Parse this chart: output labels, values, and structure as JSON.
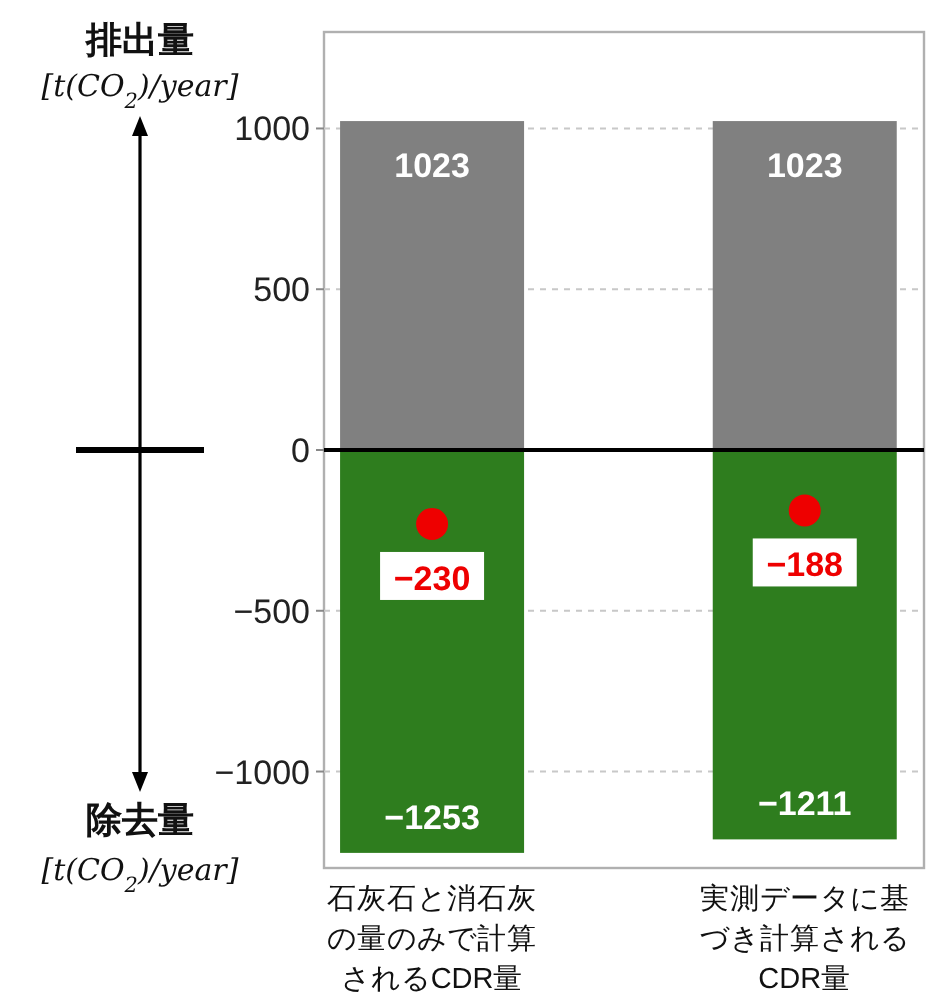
{
  "chart_data": {
    "type": "bar",
    "stacked": true,
    "categories": [
      "石灰石と消石灰の量のみで計算されるCDR量",
      "実測データに基づき計算されるCDR量"
    ],
    "series": [
      {
        "color": "#808080",
        "values": [
          1023,
          1023
        ]
      },
      {
        "color": "#2e7d1e",
        "values": [
          -1253,
          -1211
        ]
      },
      {
        "type": "scatter",
        "marker": "circle",
        "color": "#ee0000",
        "values": [
          -230,
          -188
        ]
      }
    ],
    "data_labels": true,
    "ylim": [
      -1300,
      1300
    ],
    "yticks": [
      -1000,
      -500,
      0,
      500,
      1000
    ],
    "grid": "y",
    "ref_lines": [
      {
        "axis": "y",
        "value": 0,
        "color": "#000000"
      }
    ],
    "annotations": [
      "排出量",
      "[t(CO$_{2}$)/year]",
      "除去量",
      "[t(CO$_{2}$)/year]"
    ]
  }
}
